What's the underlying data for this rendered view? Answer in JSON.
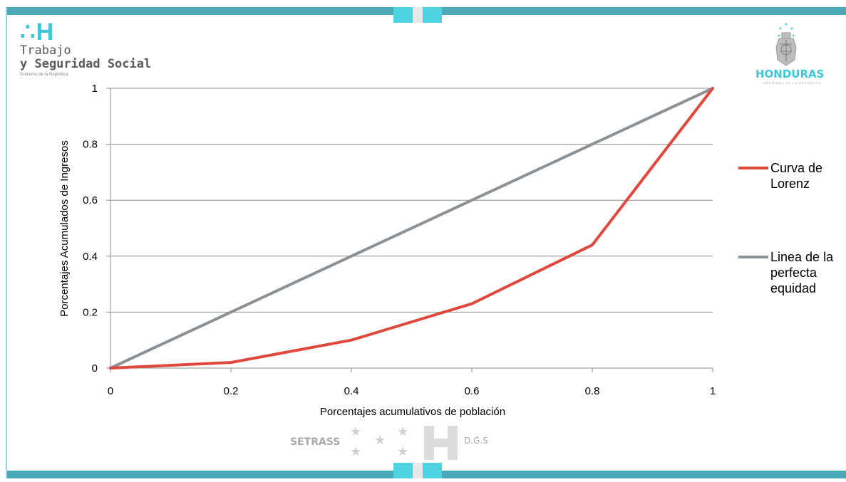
{
  "header": {
    "logo_left_mark": "∴H",
    "logo_left_line1": "Trabajo",
    "logo_left_line2": "y Seguridad Social",
    "logo_left_sub": "Gobierno de la República",
    "logo_right_name": "HONDURAS",
    "logo_right_sub": "GOBIERNO DE LA REPÚBLICA"
  },
  "footer": {
    "left_text": "SETRASS",
    "right_text": "D.G.S"
  },
  "colors": {
    "frame": "#4aa9b7",
    "accent": "#4fd3e0",
    "lorenz": "#e0483e",
    "equality": "#8c9195",
    "grid": "#8c8c8c"
  },
  "chart_data": {
    "type": "line",
    "x": [
      0,
      0.2,
      0.4,
      0.6,
      0.8,
      1
    ],
    "series": [
      {
        "name": "Curva de Lorenz",
        "values": [
          0,
          0.02,
          0.1,
          0.23,
          0.44,
          1
        ],
        "color": "#e0483e"
      },
      {
        "name": "Linea de la perfecta equidad",
        "values": [
          0,
          0.2,
          0.4,
          0.6,
          0.8,
          1
        ],
        "color": "#8c9195"
      }
    ],
    "xlabel": "Porcentajes acumulativos de población",
    "ylabel": "Porcentajes Acumulados de Ingresos",
    "xlim": [
      0,
      1
    ],
    "ylim": [
      0,
      1
    ],
    "xticks": [
      "0",
      "0.2",
      "0.4",
      "0.6",
      "0.8",
      "1"
    ],
    "yticks": [
      "0",
      "0.2",
      "0.4",
      "0.6",
      "0.8",
      "1"
    ],
    "grid": "horizontal",
    "legend_position": "right"
  }
}
